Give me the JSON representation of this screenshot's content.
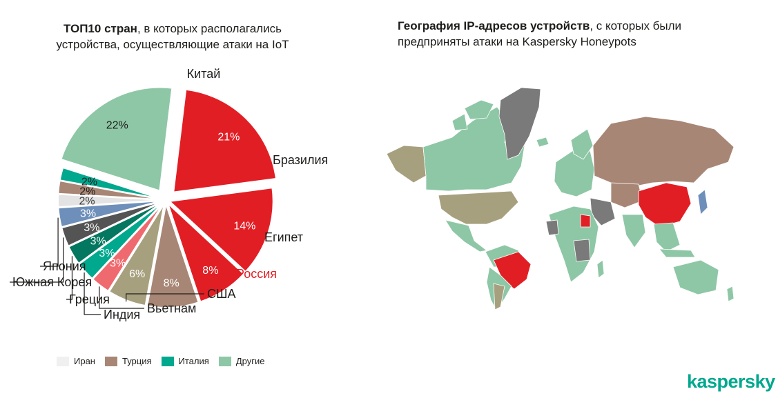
{
  "left_title": {
    "bold": "ТОП10 стран",
    "rest_line1": ", в которых располагались",
    "line2": "устройства, осуществляющие атаки на IoT"
  },
  "right_title": {
    "bold": "География IP-адресов устройств",
    "rest_line1": ", с которых были",
    "line2": "предприняты атаки на Kaspersky Honeypots"
  },
  "chart_data": {
    "type": "pie",
    "slices": [
      {
        "name": "Китай",
        "value": 21,
        "label": "21%",
        "color": "#e21e25",
        "exploded": true
      },
      {
        "name": "Бразилия",
        "value": 14,
        "label": "14%",
        "color": "#e21e25"
      },
      {
        "name": "Египет",
        "value": 8,
        "label": "8%",
        "color": "#e21e25"
      },
      {
        "name": "Россия",
        "value": 8,
        "label": "8%",
        "color": "#a88675",
        "name_color": "#e21e25"
      },
      {
        "name": "США",
        "value": 6,
        "label": "6%",
        "color": "#a7a07e"
      },
      {
        "name": "Вьетнам",
        "value": 3,
        "label": "3%",
        "color": "#ef6a6e"
      },
      {
        "name": "Индия",
        "value": 3,
        "label": "3%",
        "color": "#00a88e"
      },
      {
        "name": "Греция",
        "value": 3,
        "label": "3%",
        "color": "#03775f"
      },
      {
        "name": "Южная Корея",
        "value": 3,
        "label": "3%",
        "color": "#545454"
      },
      {
        "name": "Япония",
        "value": 3,
        "label": "3%",
        "color": "#6d8fba"
      },
      {
        "name": "Иран",
        "value": 2,
        "label": "2%",
        "color": "#e3e3e3",
        "group": true
      },
      {
        "name": "Турция",
        "value": 2,
        "label": "2%",
        "color": "#a88675",
        "group": true
      },
      {
        "name": "Италия",
        "value": 2,
        "label": "2%",
        "color": "#00a88e",
        "group": true
      },
      {
        "name": "Другие",
        "value": 22,
        "label": "22%",
        "color": "#8ec7a6",
        "exploded": true
      }
    ],
    "legend": [
      {
        "name": "Иран",
        "color": "#f0f0f0"
      },
      {
        "name": "Турция",
        "color": "#a88675"
      },
      {
        "name": "Италия",
        "color": "#00a88e"
      },
      {
        "name": "Другие",
        "color": "#8ec7a6"
      }
    ]
  },
  "map": {
    "highlighted": [
      "China",
      "Brazil",
      "Egypt"
    ],
    "colors": {
      "top": "#e21e25",
      "russia": "#a88675",
      "usa": "#a7a07e",
      "other": "#8ec7a6",
      "none": "#7a7a7a"
    }
  },
  "brand": {
    "logo": "kaspersky",
    "color": "#00a88e"
  }
}
